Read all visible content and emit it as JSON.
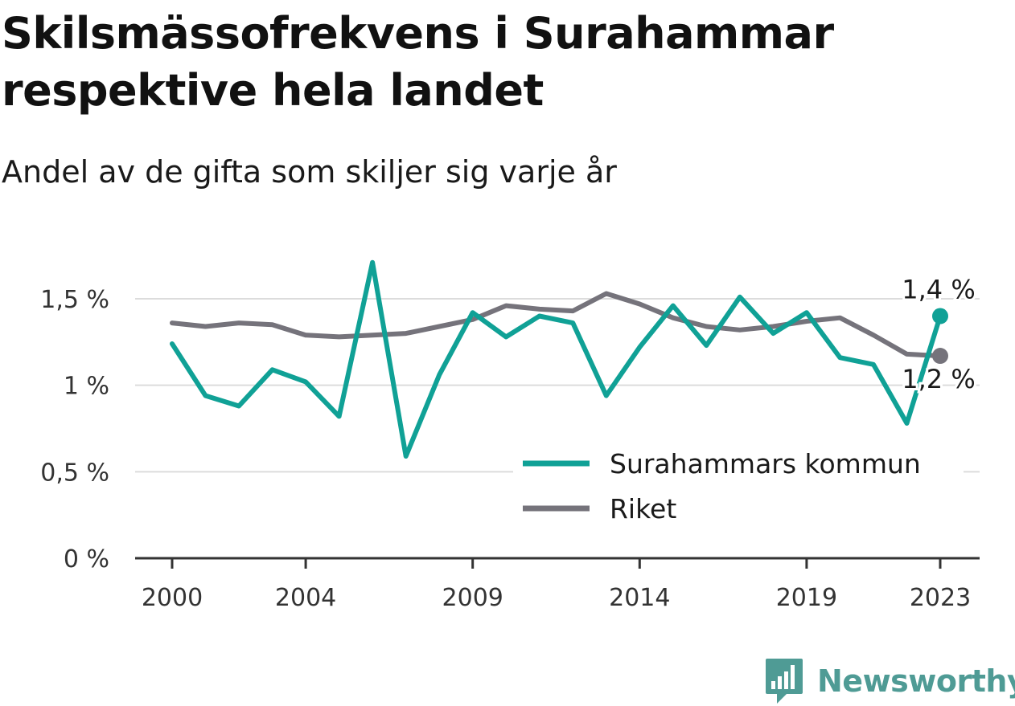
{
  "header": {
    "title": "Skilsmässofrekvens i Surahammar respektive hela landet",
    "subtitle": "Andel av de gifta som skiljer sig varje år"
  },
  "brand": {
    "name": "Newsworthy",
    "icon": "newsworthy-logo-icon",
    "color": "#4f9b95"
  },
  "chart_data": {
    "type": "line",
    "x": [
      2000,
      2001,
      2002,
      2003,
      2004,
      2005,
      2006,
      2007,
      2008,
      2009,
      2010,
      2011,
      2012,
      2013,
      2014,
      2015,
      2016,
      2017,
      2018,
      2019,
      2020,
      2021,
      2022,
      2023
    ],
    "x_ticks": [
      {
        "value": 2000,
        "label": "2000"
      },
      {
        "value": 2004,
        "label": "2004"
      },
      {
        "value": 2009,
        "label": "2009"
      },
      {
        "value": 2014,
        "label": "2014"
      },
      {
        "value": 2019,
        "label": "2019"
      },
      {
        "value": 2023,
        "label": "2023"
      }
    ],
    "y_ticks": [
      {
        "value": 0,
        "label": "0 %"
      },
      {
        "value": 0.5,
        "label": "0,5 %"
      },
      {
        "value": 1.0,
        "label": "1 %"
      },
      {
        "value": 1.5,
        "label": "1,5 %"
      }
    ],
    "xlim": [
      1999,
      2024.2
    ],
    "ylim": [
      0,
      1.75
    ],
    "grid": true,
    "legend_position": "bottom-right",
    "series": [
      {
        "name": "Surahammars kommun",
        "color": "#10a196",
        "values": [
          1.24,
          0.94,
          0.88,
          1.09,
          1.02,
          0.82,
          1.71,
          0.59,
          1.06,
          1.42,
          1.28,
          1.4,
          1.36,
          0.94,
          1.22,
          1.46,
          1.23,
          1.51,
          1.3,
          1.42,
          1.16,
          1.12,
          0.78,
          1.4
        ],
        "end_label": "1,4 %"
      },
      {
        "name": "Riket",
        "color": "#75737b",
        "values": [
          1.36,
          1.34,
          1.36,
          1.35,
          1.29,
          1.28,
          1.29,
          1.3,
          1.34,
          1.38,
          1.46,
          1.44,
          1.43,
          1.53,
          1.47,
          1.39,
          1.34,
          1.32,
          1.34,
          1.37,
          1.39,
          1.29,
          1.18,
          1.17
        ],
        "end_label": "1,2 %"
      }
    ]
  }
}
